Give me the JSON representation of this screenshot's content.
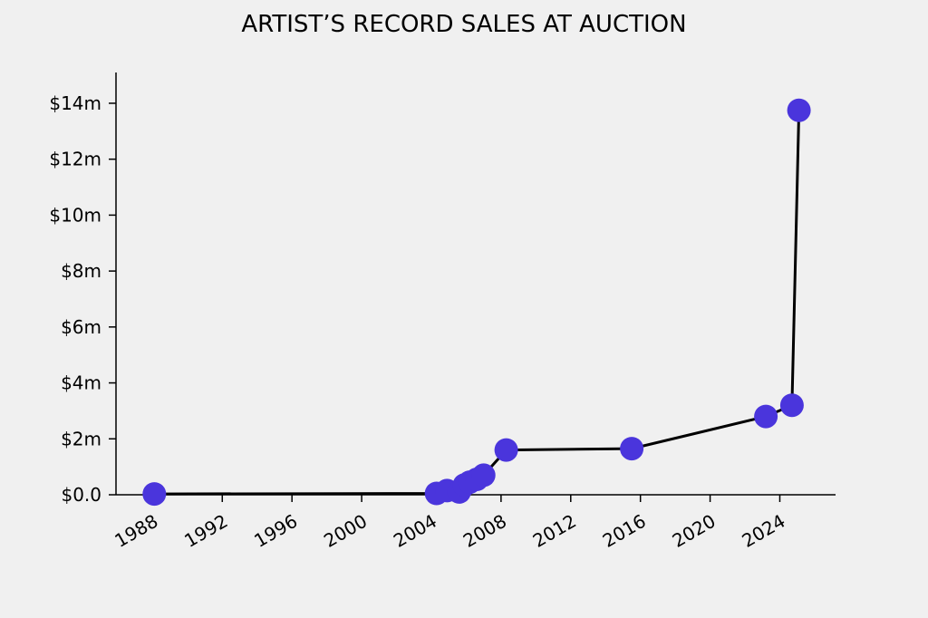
{
  "chart_data": {
    "type": "line",
    "title": "ARTIST’S RECORD SALES AT AUCTION",
    "xlabel": "",
    "ylabel": "",
    "x_ticks": [
      "1988",
      "1992",
      "1996",
      "2000",
      "2004",
      "2008",
      "2012",
      "2016",
      "2020",
      "2024"
    ],
    "y_ticks": [
      "$0.0",
      "$2m",
      "$4m",
      "$6m",
      "$8m",
      "$10m",
      "$12m",
      "$14m"
    ],
    "xlim": [
      1985.9,
      2027.2
    ],
    "ylim": [
      0,
      15.1
    ],
    "grid": false,
    "legend": "none",
    "colors": {
      "marker": "#4a35dc",
      "line": "#000000",
      "background": "#f0f0f0"
    },
    "series": [
      {
        "x": [
          1988.1,
          2004.3,
          2004.9,
          2005.6,
          2005.9,
          2006.2,
          2006.6,
          2007.0,
          2008.3,
          2015.5,
          2023.2,
          2024.7,
          2025.1
        ],
        "values": [
          0.03,
          0.05,
          0.15,
          0.1,
          0.35,
          0.45,
          0.55,
          0.7,
          1.6,
          1.65,
          2.8,
          3.2,
          13.75
        ]
      }
    ]
  }
}
